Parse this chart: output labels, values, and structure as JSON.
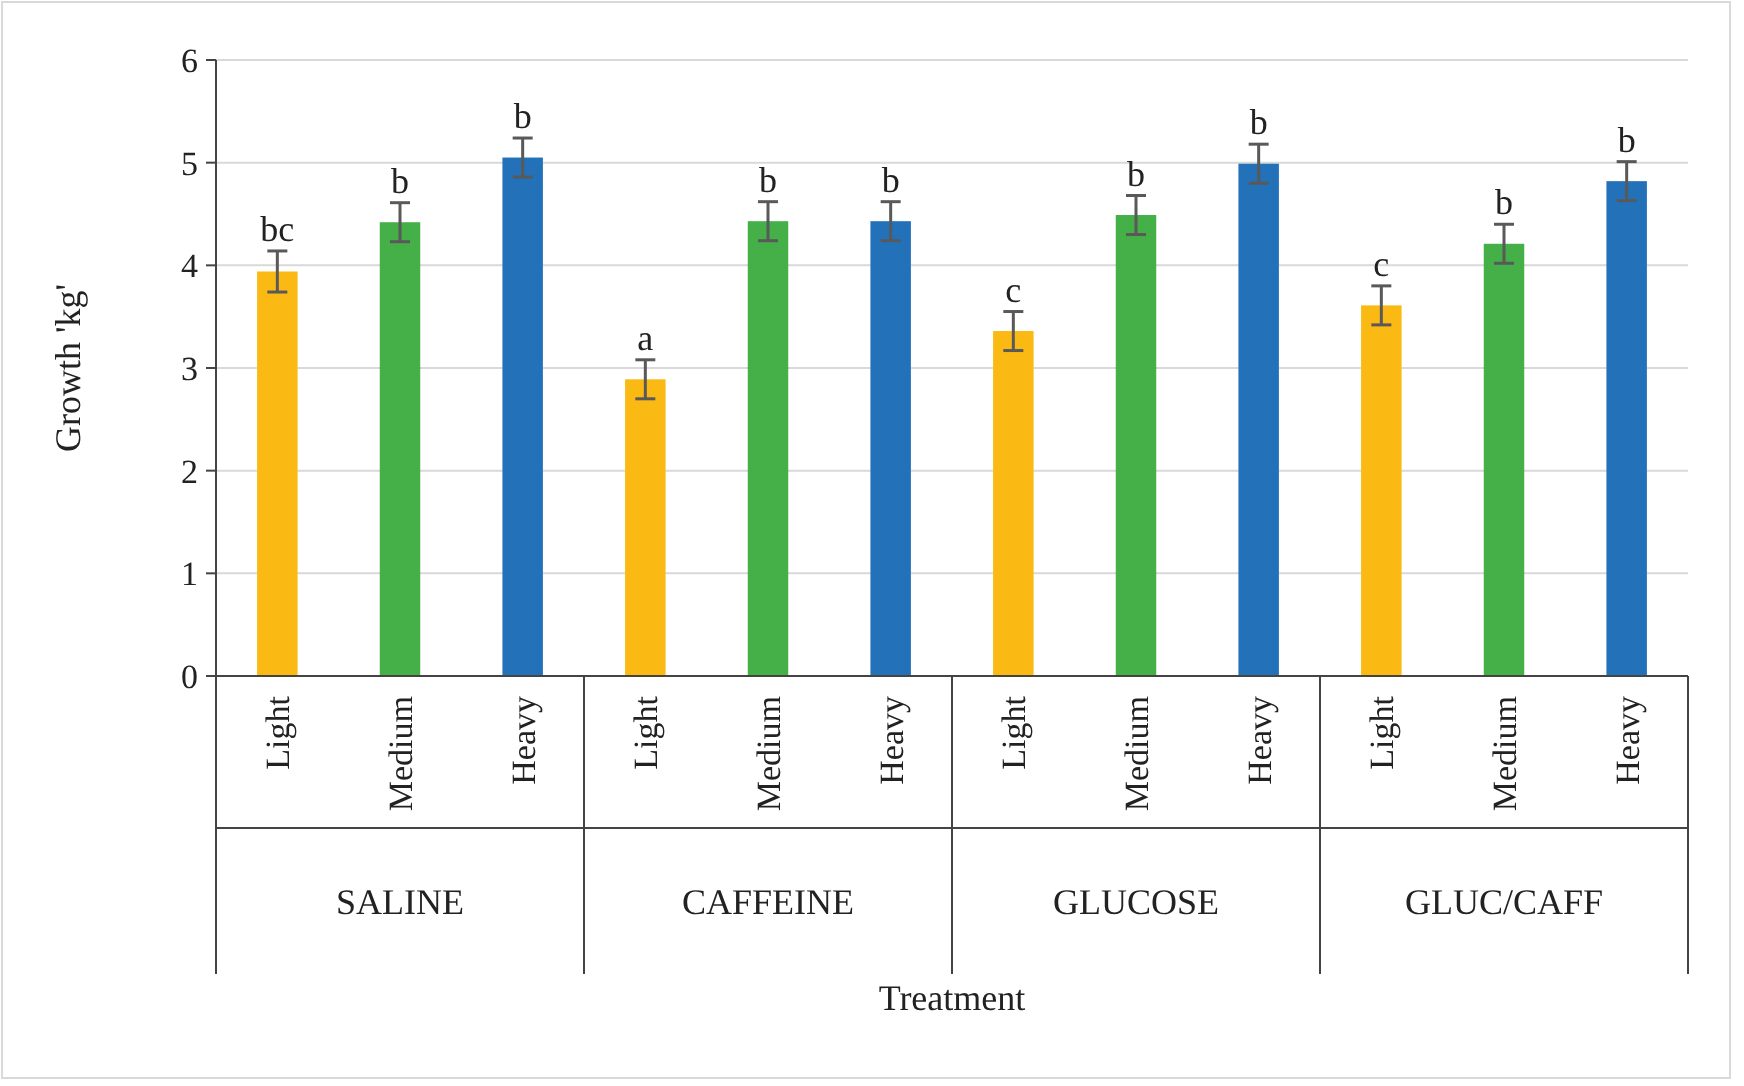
{
  "chart_data": {
    "type": "bar",
    "xlabel": "Treatment",
    "ylabel": "Growth 'kg'",
    "categories": [
      "Light",
      "Medium",
      "Heavy",
      "Light",
      "Medium",
      "Heavy",
      "Light",
      "Medium",
      "Heavy",
      "Light",
      "Medium",
      "Heavy"
    ],
    "values": [
      3.94,
      4.42,
      5.05,
      2.89,
      4.43,
      4.43,
      3.36,
      4.49,
      4.99,
      3.61,
      4.21,
      4.82
    ],
    "colors": [
      "#fbba13",
      "#45b048",
      "#2372b9",
      "#fbba13",
      "#45b048",
      "#2372b9",
      "#fbba13",
      "#45b048",
      "#2372b9",
      "#fbba13",
      "#45b048",
      "#2372b9"
    ],
    "errors": [
      0.2,
      0.19,
      0.19,
      0.19,
      0.19,
      0.19,
      0.19,
      0.19,
      0.19,
      0.19,
      0.19,
      0.19
    ],
    "value_labels": [
      "bc",
      "b",
      "b",
      "a",
      "b",
      "b",
      "c",
      "b",
      "b",
      "c",
      "b",
      "b"
    ],
    "annotations": [
      "SALINE",
      "CAFFEINE",
      "GLUCOSE",
      "GLUC/CAFF"
    ],
    "ylim": [
      0,
      6
    ],
    "yticks": [
      0,
      1,
      2,
      3,
      4,
      5,
      6
    ],
    "grid": "y"
  }
}
